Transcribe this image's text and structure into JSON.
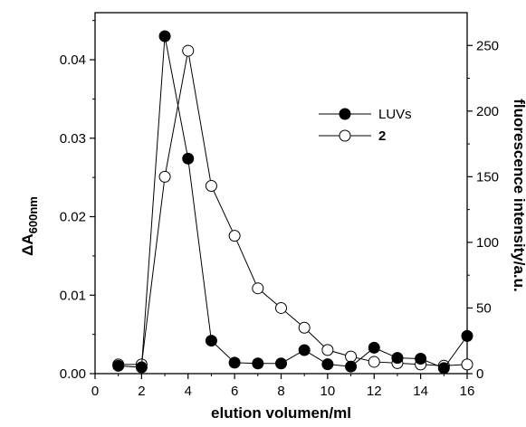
{
  "chart_data": {
    "type": "line",
    "xlabel": "elution volumen/ml",
    "ylabel_left_main": "ΔA",
    "ylabel_left_sub": "600nm",
    "ylabel_right": "fluorescence intensity/a.u.",
    "xlim": [
      0,
      16
    ],
    "ylim_left": [
      0,
      0.046
    ],
    "ylim_right": [
      0,
      275
    ],
    "x_ticks": [
      0,
      2,
      4,
      6,
      8,
      10,
      12,
      14,
      16
    ],
    "x_tick_labels": [
      "0",
      "2",
      "4",
      "6",
      "8",
      "10",
      "12",
      "14",
      "16"
    ],
    "y_left_ticks": [
      0.0,
      0.01,
      0.02,
      0.03,
      0.04
    ],
    "y_left_tick_labels": [
      "0.00",
      "0.01",
      "0.02",
      "0.03",
      "0.04"
    ],
    "y_right_ticks": [
      0,
      50,
      100,
      150,
      200,
      250
    ],
    "y_right_tick_labels": [
      "0",
      "50",
      "100",
      "150",
      "200",
      "250"
    ],
    "grid": false,
    "legend_position": "top-right",
    "series": [
      {
        "name": "LUVs",
        "axis": "left",
        "marker": "filled-circle",
        "x": [
          1,
          2,
          3,
          4,
          5,
          6,
          7,
          8,
          9,
          10,
          11,
          12,
          13,
          14,
          15,
          16
        ],
        "y": [
          0.001,
          0.0008,
          0.043,
          0.0274,
          0.0042,
          0.0014,
          0.0013,
          0.0013,
          0.003,
          0.0012,
          0.0009,
          0.0033,
          0.002,
          0.0019,
          0.0007,
          0.0048
        ]
      },
      {
        "name": "2",
        "axis": "right",
        "marker": "open-circle",
        "x": [
          1,
          2,
          3,
          4,
          5,
          6,
          7,
          8,
          9,
          10,
          11,
          12,
          13,
          14,
          15,
          16
        ],
        "y": [
          7,
          7,
          150,
          246,
          143,
          105,
          65,
          50,
          35,
          18,
          13,
          9,
          8,
          7,
          6,
          7
        ]
      }
    ]
  }
}
